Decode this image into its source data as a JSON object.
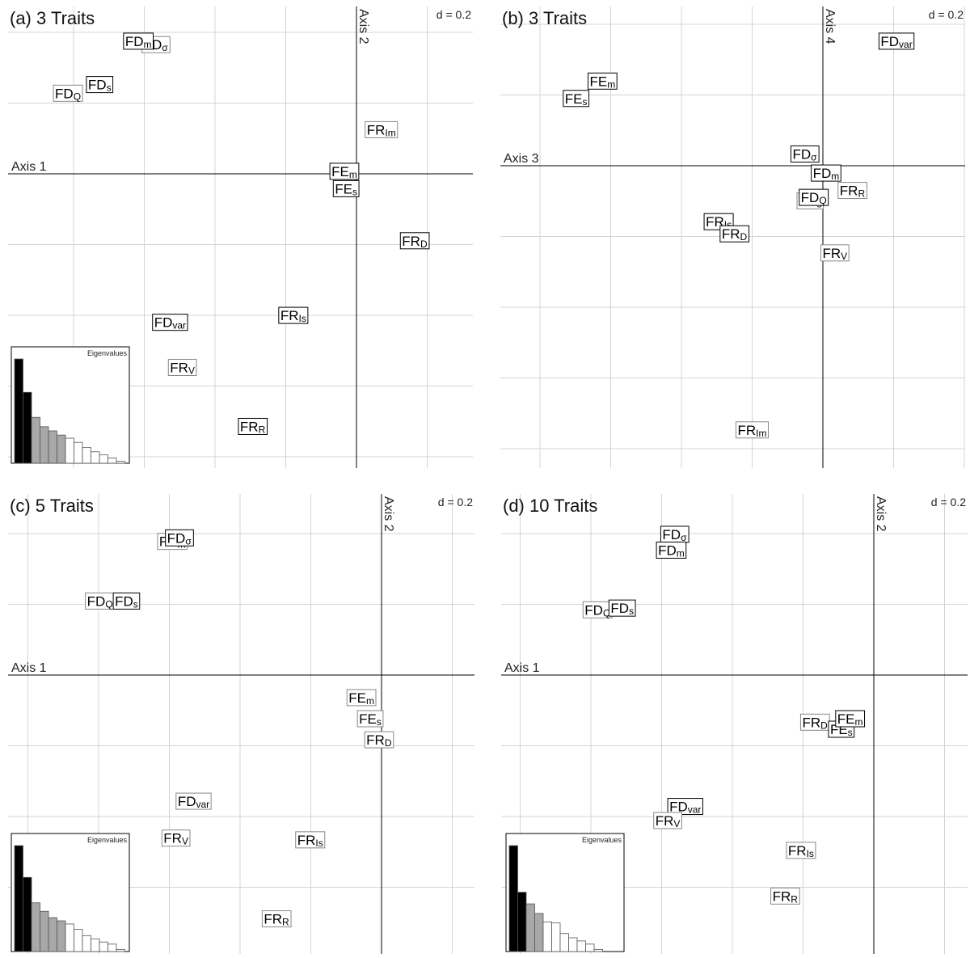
{
  "chart_data": [
    {
      "type": "scatter",
      "title": "(a) 3 Traits",
      "scale_label": "d = 0.2",
      "x_axis_label": "Axis 1",
      "y_axis_label": "Axis 2",
      "grid": true,
      "xlim": [
        -1.0,
        0.32
      ],
      "ylim": [
        -0.86,
        0.47
      ],
      "points": [
        {
          "base": "FD",
          "sub": "σ",
          "x": -0.58,
          "y": 0.36,
          "style": "gray"
        },
        {
          "base": "FD",
          "sub": "m",
          "x": -0.63,
          "y": 0.37,
          "style": "black"
        },
        {
          "base": "FD",
          "sub": "Q",
          "x": -0.83,
          "y": 0.22,
          "style": "gray"
        },
        {
          "base": "FD",
          "sub": "s",
          "x": -0.74,
          "y": 0.245,
          "style": "black"
        },
        {
          "base": "FR",
          "sub": "Im",
          "x": 0.06,
          "y": 0.115,
          "style": "gray"
        },
        {
          "base": "FE",
          "sub": "m",
          "x": -0.045,
          "y": -0.005,
          "style": "black"
        },
        {
          "base": "FE",
          "sub": "s",
          "x": -0.04,
          "y": -0.055,
          "style": "black"
        },
        {
          "base": "FR",
          "sub": "D",
          "x": 0.155,
          "y": -0.205,
          "style": "black"
        },
        {
          "base": "FR",
          "sub": "Is",
          "x": -0.19,
          "y": -0.42,
          "style": "black"
        },
        {
          "base": "FD",
          "sub": "var",
          "x": -0.54,
          "y": -0.44,
          "style": "black"
        },
        {
          "base": "FR",
          "sub": "V",
          "x": -0.505,
          "y": -0.57,
          "style": "gray"
        },
        {
          "base": "FR",
          "sub": "R",
          "x": -0.305,
          "y": -0.74,
          "style": "black"
        }
      ],
      "eigenvalues_label": "Eigenvalues",
      "eigenvalues": [
        1.0,
        0.68,
        0.44,
        0.35,
        0.31,
        0.27,
        0.24,
        0.2,
        0.15,
        0.11,
        0.08,
        0.05,
        0.02
      ],
      "eigen_highlight": [
        0,
        1,
        2,
        3,
        4,
        5
      ]
    },
    {
      "type": "scatter",
      "title": "(b) 3 Traits",
      "scale_label": "d = 0.2",
      "x_axis_label": "Axis 3",
      "y_axis_label": "Axis 4",
      "grid": true,
      "xlim": [
        -0.92,
        0.4
      ],
      "ylim": [
        -0.86,
        0.47
      ],
      "points": [
        {
          "base": "FD",
          "sub": "var",
          "x": 0.205,
          "y": 0.37,
          "style": "black"
        },
        {
          "base": "FE",
          "sub": "m",
          "x": -0.63,
          "y": 0.255,
          "style": "black"
        },
        {
          "base": "FE",
          "sub": "s",
          "x": -0.705,
          "y": 0.205,
          "style": "black"
        },
        {
          "base": "FD",
          "sub": "σ",
          "x": -0.055,
          "y": 0.045,
          "style": "black"
        },
        {
          "base": "FD",
          "sub": "m",
          "x": 0.005,
          "y": -0.01,
          "style": "black"
        },
        {
          "base": "FR",
          "sub": "R",
          "x": 0.08,
          "y": -0.06,
          "style": "gray"
        },
        {
          "base": "FD",
          "sub": "s",
          "x": -0.04,
          "y": -0.09,
          "style": "gray"
        },
        {
          "base": "FD",
          "sub": "Q",
          "x": -0.03,
          "y": -0.08,
          "style": "black"
        },
        {
          "base": "FR",
          "sub": "Is",
          "x": -0.3,
          "y": -0.15,
          "style": "black"
        },
        {
          "base": "FR",
          "sub": "D",
          "x": -0.255,
          "y": -0.185,
          "style": "black"
        },
        {
          "base": "FR",
          "sub": "V",
          "x": 0.03,
          "y": -0.24,
          "style": "gray"
        },
        {
          "base": "FR",
          "sub": "Im",
          "x": -0.205,
          "y": -0.75,
          "style": "gray"
        }
      ]
    },
    {
      "type": "scatter",
      "title": "(c) 5 Traits",
      "scale_label": "d = 0.2",
      "x_axis_label": "Axis 1",
      "y_axis_label": "Axis 2",
      "grid": true,
      "xlim": [
        -1.06,
        0.26
      ],
      "ylim": [
        -0.79,
        0.52
      ],
      "points": [
        {
          "base": "FD",
          "sub": "m",
          "x": -0.595,
          "y": 0.385,
          "style": "gray"
        },
        {
          "base": "FD",
          "sub": "σ",
          "x": -0.575,
          "y": 0.395,
          "style": "black"
        },
        {
          "base": "FD",
          "sub": "Q",
          "x": -0.8,
          "y": 0.215,
          "style": "gray"
        },
        {
          "base": "FD",
          "sub": "s",
          "x": -0.725,
          "y": 0.215,
          "style": "black"
        },
        {
          "base": "FE",
          "sub": "m",
          "x": -0.06,
          "y": -0.06,
          "style": "gray"
        },
        {
          "base": "FE",
          "sub": "s",
          "x": -0.035,
          "y": -0.12,
          "style": "gray"
        },
        {
          "base": "FR",
          "sub": "D",
          "x": -0.01,
          "y": -0.18,
          "style": "gray"
        },
        {
          "base": "FD",
          "sub": "var",
          "x": -0.535,
          "y": -0.355,
          "style": "gray"
        },
        {
          "base": "FR",
          "sub": "V",
          "x": -0.585,
          "y": -0.46,
          "style": "gray"
        },
        {
          "base": "FR",
          "sub": "Is",
          "x": -0.205,
          "y": -0.465,
          "style": "gray"
        },
        {
          "base": "FR",
          "sub": "R",
          "x": -0.3,
          "y": -0.69,
          "style": "gray"
        }
      ],
      "eigenvalues_label": "Eigenvalues",
      "eigenvalues": [
        1.0,
        0.7,
        0.46,
        0.38,
        0.32,
        0.29,
        0.26,
        0.21,
        0.15,
        0.12,
        0.09,
        0.07,
        0.02
      ],
      "eigen_highlight": [
        0,
        1,
        2,
        3,
        4,
        5
      ]
    },
    {
      "type": "scatter",
      "title": "(d) 10 Traits",
      "scale_label": "d = 0.2",
      "x_axis_label": "Axis 1",
      "y_axis_label": "Axis 2",
      "grid": true,
      "xlim": [
        -1.06,
        0.27
      ],
      "ylim": [
        -0.79,
        0.52
      ],
      "points": [
        {
          "base": "FD",
          "sub": "σ",
          "x": -0.565,
          "y": 0.405,
          "style": "black"
        },
        {
          "base": "FD",
          "sub": "m",
          "x": -0.575,
          "y": 0.36,
          "style": "black"
        },
        {
          "base": "FD",
          "sub": "Q",
          "x": -0.785,
          "y": 0.19,
          "style": "gray"
        },
        {
          "base": "FD",
          "sub": "s",
          "x": -0.715,
          "y": 0.195,
          "style": "black"
        },
        {
          "base": "FR",
          "sub": "D",
          "x": -0.165,
          "y": -0.13,
          "style": "gray"
        },
        {
          "base": "FE",
          "sub": "s",
          "x": -0.09,
          "y": -0.15,
          "style": "black"
        },
        {
          "base": "FE",
          "sub": "m",
          "x": -0.065,
          "y": -0.12,
          "style": "black"
        },
        {
          "base": "FD",
          "sub": "var",
          "x": -0.535,
          "y": -0.37,
          "style": "black"
        },
        {
          "base": "FR",
          "sub": "V",
          "x": -0.585,
          "y": -0.41,
          "style": "gray"
        },
        {
          "base": "FR",
          "sub": "Is",
          "x": -0.205,
          "y": -0.495,
          "style": "gray"
        },
        {
          "base": "FR",
          "sub": "R",
          "x": -0.25,
          "y": -0.625,
          "style": "gray"
        }
      ],
      "eigenvalues_label": "Eigenvalues",
      "eigenvalues": [
        1.0,
        0.56,
        0.45,
        0.36,
        0.28,
        0.27,
        0.17,
        0.13,
        0.1,
        0.07,
        0.02
      ],
      "eigen_highlight": [
        0,
        1,
        2,
        3
      ]
    }
  ]
}
